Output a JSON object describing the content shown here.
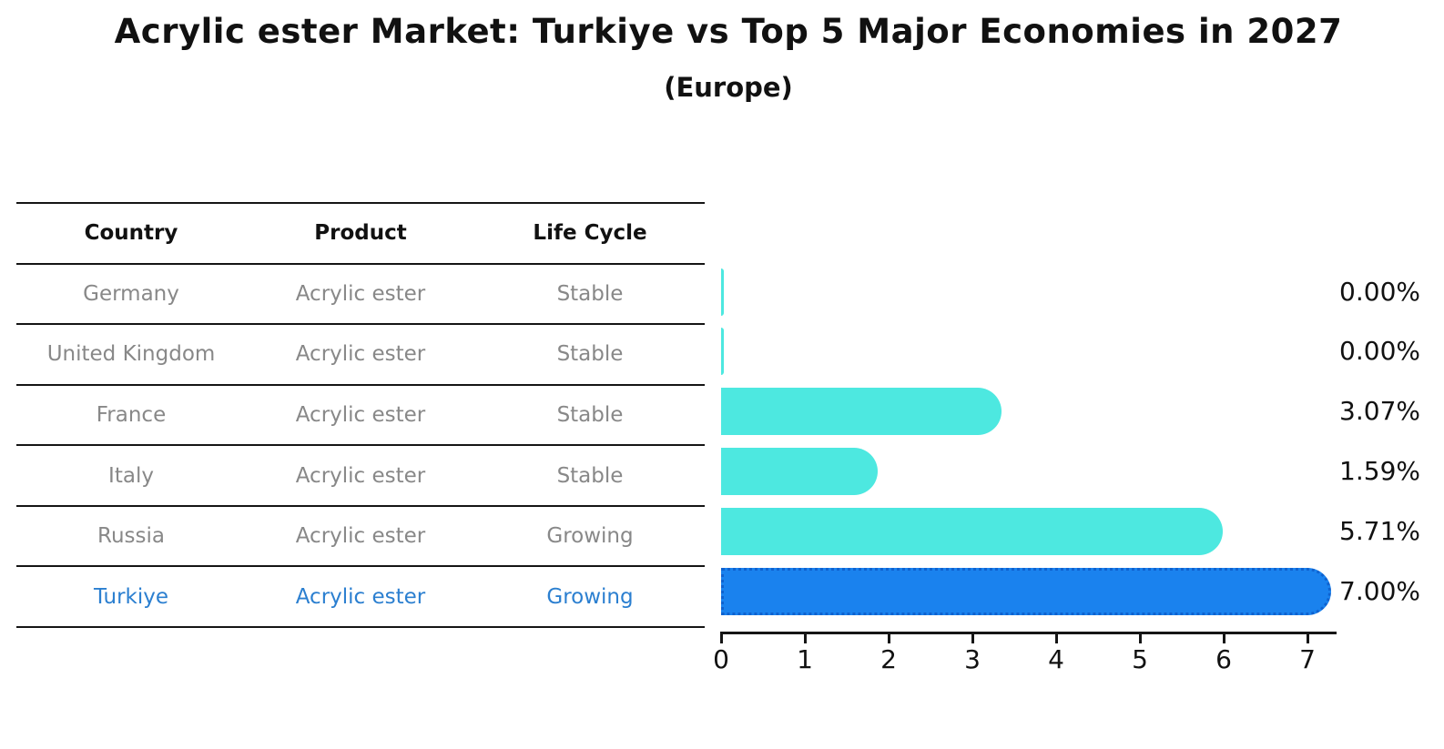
{
  "title": "Acrylic ester Market: Turkiye vs Top 5 Major Economies in 2027",
  "subtitle": "(Europe)",
  "table": {
    "headers": [
      "Country",
      "Product",
      "Life Cycle"
    ],
    "rows": [
      {
        "country": "Germany",
        "product": "Acrylic ester",
        "life_cycle": "Stable",
        "highlight": false
      },
      {
        "country": "United Kingdom",
        "product": "Acrylic ester",
        "life_cycle": "Stable",
        "highlight": false
      },
      {
        "country": "France",
        "product": "Acrylic ester",
        "life_cycle": "Stable",
        "highlight": false
      },
      {
        "country": "Italy",
        "product": "Acrylic ester",
        "life_cycle": "Stable",
        "highlight": false
      },
      {
        "country": "Russia",
        "product": "Acrylic ester",
        "life_cycle": "Growing",
        "highlight": false
      },
      {
        "country": "Turkiye",
        "product": "Acrylic ester",
        "life_cycle": "Growing",
        "highlight": true
      }
    ]
  },
  "chart_data": {
    "type": "bar",
    "orientation": "horizontal",
    "title": "Acrylic ester Market: Turkiye vs Top 5 Major Economies in 2027",
    "subtitle": "(Europe)",
    "categories": [
      "Germany",
      "United Kingdom",
      "France",
      "Italy",
      "Russia",
      "Turkiye"
    ],
    "values": [
      0.0,
      0.0,
      3.07,
      1.59,
      5.71,
      7.0
    ],
    "value_labels": [
      "0.00%",
      "0.00%",
      "3.07%",
      "1.59%",
      "5.71%",
      "7.00%"
    ],
    "unit": "%",
    "x_ticks": [
      0,
      1,
      2,
      3,
      4,
      5,
      6,
      7
    ],
    "xlim": [
      0,
      7
    ],
    "grid": false,
    "legend": false,
    "highlight_index": 5
  },
  "colors": {
    "bar": "#4de8e0",
    "highlight_bar": "#1a82ee",
    "highlight_border": "#0f62cf",
    "highlight_text": "#2b7fd0",
    "table_text": "#888888",
    "line": "#151515"
  }
}
